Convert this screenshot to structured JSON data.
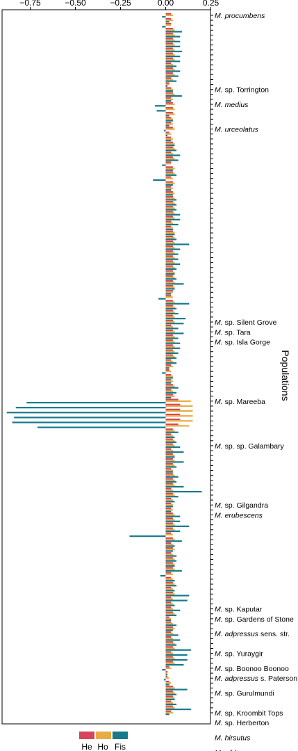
{
  "chart_data": {
    "type": "bar",
    "orientation": "horizontal-grouped",
    "ylabel": "Populations",
    "xlim": [
      -0.9,
      0.25
    ],
    "xticks": [
      -0.75,
      -0.5,
      -0.25,
      0.0,
      0.25
    ],
    "xtick_labels": [
      "−0.75",
      "−0.50",
      "−0.25",
      "0.00",
      "0.25"
    ],
    "grid": false,
    "legend_position": "bottom",
    "colors": {
      "He": "#d6455a",
      "Ho": "#e8ac44",
      "Fis": "#157a8c"
    },
    "series": [
      {
        "name": "He",
        "color": "#d6455a"
      },
      {
        "name": "Ho",
        "color": "#e8ac44"
      },
      {
        "name": "Fis",
        "color": "#157a8c"
      }
    ],
    "labeled_populations": [
      {
        "index": 0,
        "genus": "M.",
        "epithet": "procumbens",
        "suffix": ""
      },
      {
        "index": 15,
        "genus": "M.",
        "epithet": "",
        "suffix": "sp. Torrington"
      },
      {
        "index": 18,
        "genus": "M.",
        "epithet": "medius",
        "suffix": ""
      },
      {
        "index": 23,
        "genus": "M.",
        "epithet": "urceolatus",
        "suffix": ""
      },
      {
        "index": 62,
        "genus": "M.",
        "epithet": "",
        "suffix": "sp. Silent Grove"
      },
      {
        "index": 64,
        "genus": "M.",
        "epithet": "",
        "suffix": "sp. Tara"
      },
      {
        "index": 66,
        "genus": "M.",
        "epithet": "",
        "suffix": "sp. Isla Gorge"
      },
      {
        "index": 78,
        "genus": "M.",
        "epithet": "",
        "suffix": "sp. Mareeba"
      },
      {
        "index": 87,
        "genus": "M.",
        "epithet": "",
        "suffix": "sp. sp. Galambary"
      },
      {
        "index": 99,
        "genus": "M.",
        "epithet": "",
        "suffix": "sp. Gilgandra"
      },
      {
        "index": 101,
        "genus": "M.",
        "epithet": "erubescens",
        "suffix": ""
      },
      {
        "index": 120,
        "genus": "M.",
        "epithet": "",
        "suffix": "sp. Kaputar"
      },
      {
        "index": 122,
        "genus": "M.",
        "epithet": "",
        "suffix": "sp. Gardens of Stone"
      },
      {
        "index": 125,
        "genus": "M.",
        "epithet": "adpressus",
        "suffix": "sens. str."
      },
      {
        "index": 129,
        "genus": "M.",
        "epithet": "",
        "suffix": "sp. Yuraygir"
      },
      {
        "index": 132,
        "genus": "M.",
        "epithet": "",
        "suffix": "sp. Boonoo Boonoo"
      },
      {
        "index": 134,
        "genus": "M.",
        "epithet": "adpressus",
        "suffix": "s. Paterson"
      },
      {
        "index": 137,
        "genus": "M.",
        "epithet": "",
        "suffix": "sp. Gurulmundi"
      },
      {
        "index": 141,
        "genus": "M.",
        "epithet": "",
        "suffix": "sp. Kroombit Tops"
      },
      {
        "index": 143,
        "genus": "M.",
        "epithet": "",
        "suffix": "sp. Herberton"
      },
      {
        "index": 146,
        "genus": "M.",
        "epithet": "hirsutus",
        "suffix": ""
      },
      {
        "index": 149,
        "genus": "M.",
        "epithet": "gibberagee",
        "suffix": ""
      }
    ],
    "populations": [
      [
        0.03,
        0.04,
        -0.02
      ],
      [
        0.03,
        0.04,
        0.02
      ],
      [
        0.03,
        0.03,
        -0.02
      ],
      [
        0.04,
        0.05,
        0.09
      ],
      [
        0.04,
        0.05,
        0.08
      ],
      [
        0.04,
        0.05,
        0.08
      ],
      [
        0.04,
        0.05,
        0.08
      ],
      [
        0.04,
        0.05,
        0.09
      ],
      [
        0.04,
        0.05,
        0.08
      ],
      [
        0.04,
        0.05,
        0.08
      ],
      [
        0.03,
        0.04,
        0.06
      ],
      [
        0.04,
        0.05,
        0.08
      ],
      [
        0.04,
        0.05,
        0.07
      ],
      [
        0.03,
        0.04,
        0.06
      ],
      [
        0.02,
        0.02,
        0.01
      ],
      [
        0.03,
        0.04,
        0.04
      ],
      [
        0.04,
        0.05,
        0.09
      ],
      [
        0.03,
        0.04,
        0.03
      ],
      [
        0.04,
        0.05,
        -0.06
      ],
      [
        0.04,
        0.05,
        -0.05
      ],
      [
        0.04,
        0.05,
        0.02
      ],
      [
        0.03,
        0.04,
        0.04
      ],
      [
        0.03,
        0.04,
        0.02
      ],
      [
        0.04,
        0.05,
        -0.01
      ],
      [
        0.02,
        0.03,
        0.01
      ],
      [
        0.03,
        0.04,
        0.03
      ],
      [
        0.04,
        0.05,
        0.05
      ],
      [
        0.04,
        0.05,
        0.06
      ],
      [
        0.03,
        0.04,
        0.08
      ],
      [
        0.04,
        0.05,
        0.07
      ],
      [
        0.03,
        0.03,
        -0.02
      ],
      [
        0.04,
        0.05,
        0.04
      ],
      [
        0.04,
        0.05,
        0.06
      ],
      [
        0.03,
        0.04,
        -0.07
      ],
      [
        0.04,
        0.05,
        0.04
      ],
      [
        0.03,
        0.04,
        0.03
      ],
      [
        0.04,
        0.05,
        0.04
      ],
      [
        0.04,
        0.05,
        0.06
      ],
      [
        0.04,
        0.05,
        0.06
      ],
      [
        0.04,
        0.05,
        0.06
      ],
      [
        0.04,
        0.05,
        0.08
      ],
      [
        0.04,
        0.05,
        0.08
      ],
      [
        0.03,
        0.04,
        0.07
      ],
      [
        0.03,
        0.04,
        0.04
      ],
      [
        0.04,
        0.05,
        0.05
      ],
      [
        0.04,
        0.05,
        0.06
      ],
      [
        0.04,
        0.05,
        0.13
      ],
      [
        0.04,
        0.05,
        0.08
      ],
      [
        0.04,
        0.05,
        0.07
      ],
      [
        0.04,
        0.05,
        0.07
      ],
      [
        0.04,
        0.05,
        0.08
      ],
      [
        0.04,
        0.05,
        0.06
      ],
      [
        0.04,
        0.05,
        0.05
      ],
      [
        0.04,
        0.05,
        0.06
      ],
      [
        0.04,
        0.05,
        0.1
      ],
      [
        0.04,
        0.05,
        0.05
      ],
      [
        0.04,
        0.04,
        0.03
      ],
      [
        0.03,
        0.04,
        -0.04
      ],
      [
        0.04,
        0.05,
        0.13
      ],
      [
        0.04,
        0.05,
        0.06
      ],
      [
        0.04,
        0.05,
        0.07
      ],
      [
        0.04,
        0.05,
        0.11
      ],
      [
        0.04,
        0.05,
        0.1
      ],
      [
        0.03,
        0.04,
        0.07
      ],
      [
        0.04,
        0.05,
        0.1
      ],
      [
        0.04,
        0.05,
        0.07
      ],
      [
        0.04,
        0.05,
        0.08
      ],
      [
        0.04,
        0.05,
        0.08
      ],
      [
        0.04,
        0.05,
        0.07
      ],
      [
        0.04,
        0.05,
        0.06
      ],
      [
        0.03,
        0.04,
        0.06
      ],
      [
        0.03,
        0.04,
        0.02
      ],
      [
        0.02,
        0.03,
        -0.02
      ],
      [
        0.03,
        0.04,
        0.04
      ],
      [
        0.03,
        0.04,
        0.03
      ],
      [
        0.04,
        0.05,
        0.07
      ],
      [
        0.03,
        0.04,
        0.06
      ],
      [
        0.04,
        0.05,
        0.03
      ],
      [
        0.07,
        0.14,
        -0.77
      ],
      [
        0.08,
        0.15,
        -0.83
      ],
      [
        0.08,
        0.15,
        -0.88
      ],
      [
        0.08,
        0.15,
        -0.84
      ],
      [
        0.08,
        0.15,
        -0.85
      ],
      [
        0.07,
        0.13,
        -0.71
      ],
      [
        0.04,
        0.05,
        0.07
      ],
      [
        0.03,
        0.04,
        0.05
      ],
      [
        0.04,
        0.05,
        0.06
      ],
      [
        0.04,
        0.05,
        0.08
      ],
      [
        0.03,
        0.04,
        0.1
      ],
      [
        0.04,
        0.05,
        0.05
      ],
      [
        0.04,
        0.05,
        0.1
      ],
      [
        0.04,
        0.05,
        0.06
      ],
      [
        0.03,
        0.04,
        0.04
      ],
      [
        0.04,
        0.05,
        0.07
      ],
      [
        0.04,
        0.05,
        0.06
      ],
      [
        0.04,
        0.05,
        0.1
      ],
      [
        0.03,
        0.04,
        0.2
      ],
      [
        0.04,
        0.05,
        0.07
      ],
      [
        0.03,
        0.04,
        0.05
      ],
      [
        0.03,
        0.04,
        0.04
      ],
      [
        0.03,
        0.04,
        0.03
      ],
      [
        0.04,
        0.05,
        0.08
      ],
      [
        0.04,
        0.05,
        0.08
      ],
      [
        0.04,
        0.05,
        0.13
      ],
      [
        0.04,
        0.05,
        0.08
      ],
      [
        0.03,
        0.04,
        -0.2
      ],
      [
        0.04,
        0.05,
        0.09
      ],
      [
        0.03,
        0.04,
        0.05
      ],
      [
        0.04,
        0.05,
        0.04
      ],
      [
        0.03,
        0.04,
        0.06
      ],
      [
        0.04,
        0.05,
        0.06
      ],
      [
        0.04,
        0.05,
        0.05
      ],
      [
        0.04,
        0.05,
        0.09
      ],
      [
        0.03,
        0.04,
        -0.03
      ],
      [
        0.03,
        0.04,
        0.05
      ],
      [
        0.04,
        0.05,
        0.06
      ],
      [
        0.03,
        0.04,
        0.05
      ],
      [
        0.04,
        0.05,
        0.13
      ],
      [
        0.03,
        0.04,
        0.12
      ],
      [
        0.03,
        0.04,
        0.05
      ],
      [
        0.03,
        0.04,
        0.08
      ],
      [
        0.04,
        0.05,
        0.06
      ],
      [
        0.02,
        0.03,
        0.03
      ],
      [
        0.03,
        0.04,
        0.06
      ],
      [
        0.04,
        0.05,
        0.04
      ],
      [
        0.03,
        0.04,
        0.07
      ],
      [
        0.03,
        0.04,
        0.08
      ],
      [
        0.04,
        0.05,
        0.06
      ],
      [
        0.04,
        0.05,
        0.14
      ],
      [
        0.03,
        0.04,
        0.12
      ],
      [
        0.04,
        0.05,
        0.12
      ],
      [
        0.04,
        0.05,
        0.1
      ],
      [
        0.02,
        0.03,
        -0.02
      ],
      [
        0.01,
        0.01,
        0.01
      ],
      [
        0.01,
        0.02,
        -0.01
      ],
      [
        0.02,
        0.03,
        0.02
      ],
      [
        0.04,
        0.05,
        0.12
      ],
      [
        0.04,
        0.05,
        0.06
      ],
      [
        0.04,
        0.05,
        0.05
      ],
      [
        0.03,
        0.04,
        0.06
      ],
      [
        0.04,
        0.05,
        0.14
      ],
      [
        0.03,
        0.04,
        0.02
      ]
    ]
  },
  "legend": {
    "he_label": "He",
    "ho_label": "Ho",
    "fis_label": "Fis"
  }
}
